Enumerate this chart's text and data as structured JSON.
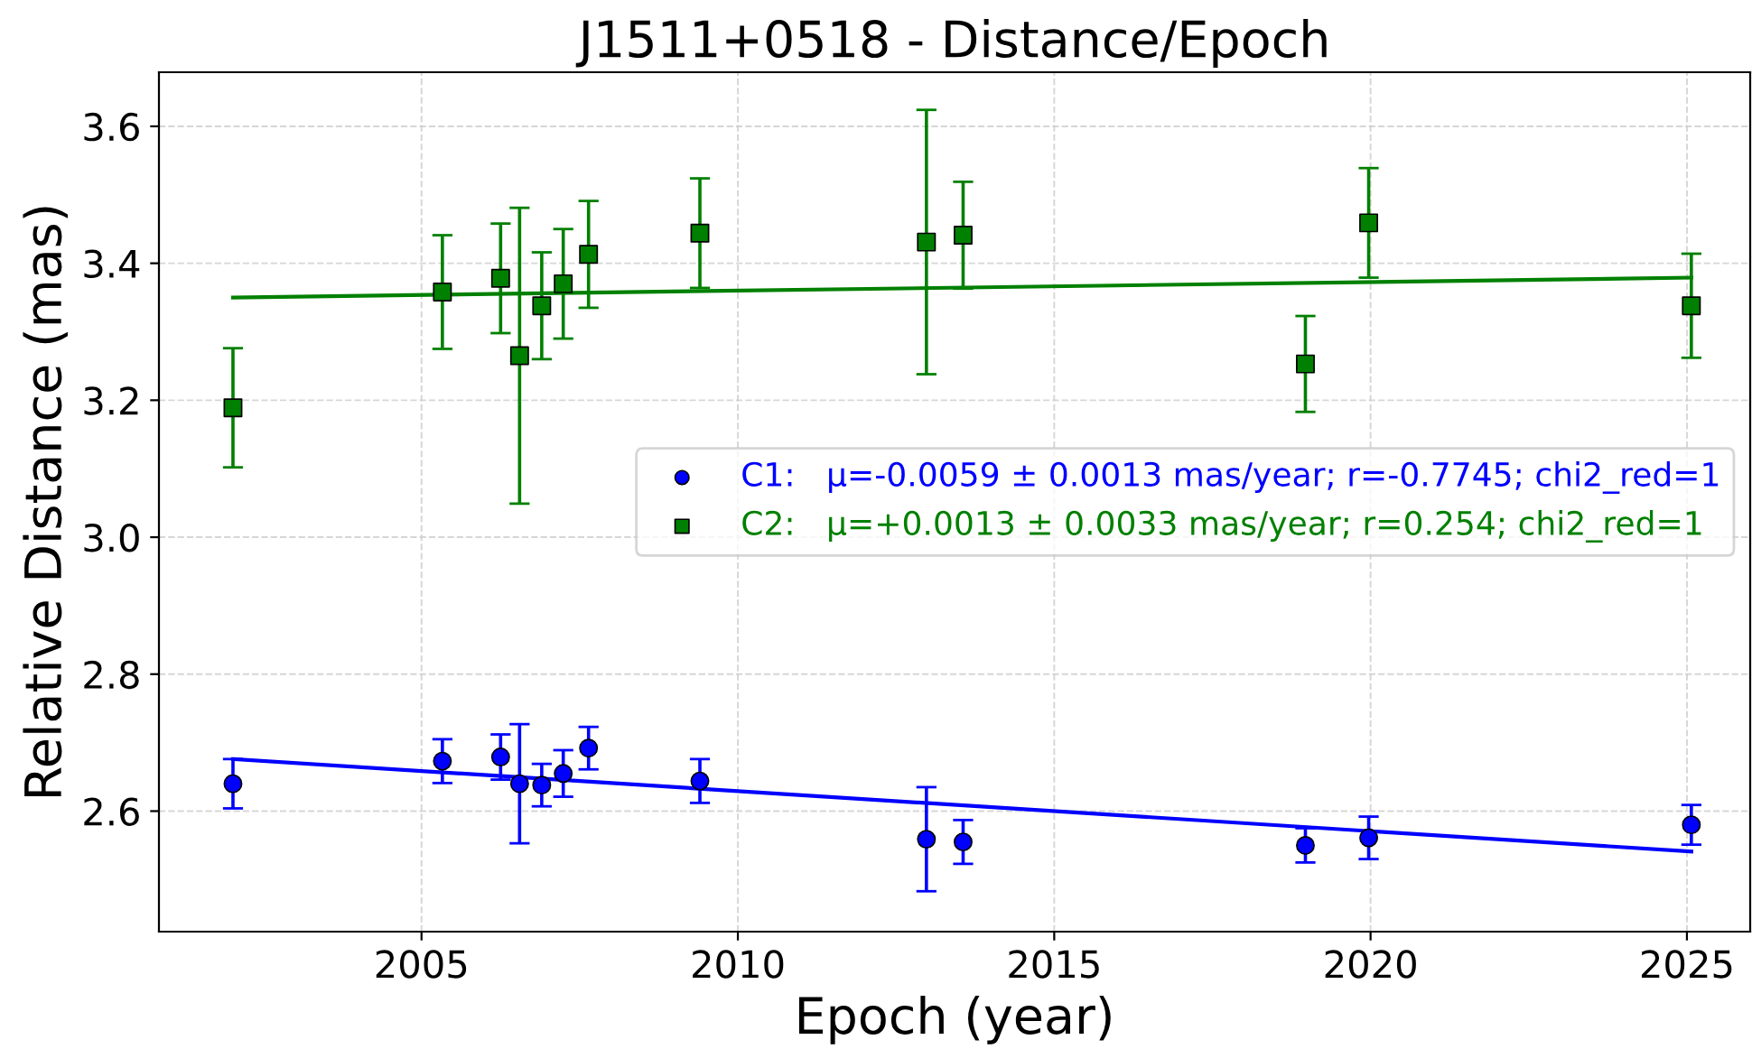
{
  "chart_data": {
    "type": "scatter",
    "title": "J1511+0518 - Distance/Epoch",
    "xlabel": "Epoch (year)",
    "ylabel": "Relative Distance (mas)",
    "xlim": [
      2000.85,
      2026.0
    ],
    "xticks": [
      2005,
      2010,
      2015,
      2020,
      2025
    ],
    "ylim": [
      2.424,
      3.679
    ],
    "yticks": [
      2.6,
      2.8,
      {
        "value": 3.0,
        "label": "3.0"
      },
      3.2,
      3.4,
      3.6
    ],
    "grid": true,
    "legend": "right",
    "series": [
      {
        "name": "C1:   μ=-0.0059 ± 0.0013 mas/year; r=-0.7745; chi2_red=1",
        "color": "#0000ff",
        "marker": "circle",
        "x": [
          2002.02,
          2005.33,
          2006.25,
          2006.55,
          2006.9,
          2007.24,
          2007.64,
          2009.4,
          2012.98,
          2013.56,
          2018.97,
          2019.97,
          2025.07
        ],
        "values": [
          2.64,
          2.673,
          2.679,
          2.64,
          2.638,
          2.655,
          2.692,
          2.644,
          2.559,
          2.555,
          2.55,
          2.561,
          2.58
        ],
        "errors": [
          0.036,
          0.032,
          0.033,
          0.087,
          0.031,
          0.034,
          0.031,
          0.032,
          0.076,
          0.032,
          0.025,
          0.031,
          0.029
        ]
      },
      {
        "name": "C2:   μ=+0.0013 ± 0.0033 mas/year; r=0.254; chi2_red=1",
        "color": "#008000",
        "marker": "square",
        "x": [
          2002.02,
          2005.33,
          2006.25,
          2006.55,
          2006.9,
          2007.24,
          2007.64,
          2009.4,
          2012.98,
          2013.56,
          2018.97,
          2019.97,
          2025.07
        ],
        "values": [
          3.189,
          3.358,
          3.378,
          3.265,
          3.338,
          3.37,
          3.413,
          3.444,
          3.431,
          3.441,
          3.253,
          3.459,
          3.338
        ],
        "errors": [
          0.087,
          0.083,
          0.08,
          0.216,
          0.078,
          0.08,
          0.078,
          0.08,
          0.193,
          0.078,
          0.07,
          0.08,
          0.076
        ]
      },
      {
        "type": "line",
        "color": "#0000ff",
        "x": [
          2002.02,
          2025.07
        ],
        "values": [
          2.676,
          2.541
        ]
      },
      {
        "type": "line",
        "color": "#008000",
        "x": [
          2002.02,
          2025.07
        ],
        "values": [
          3.35,
          3.379
        ]
      }
    ]
  }
}
